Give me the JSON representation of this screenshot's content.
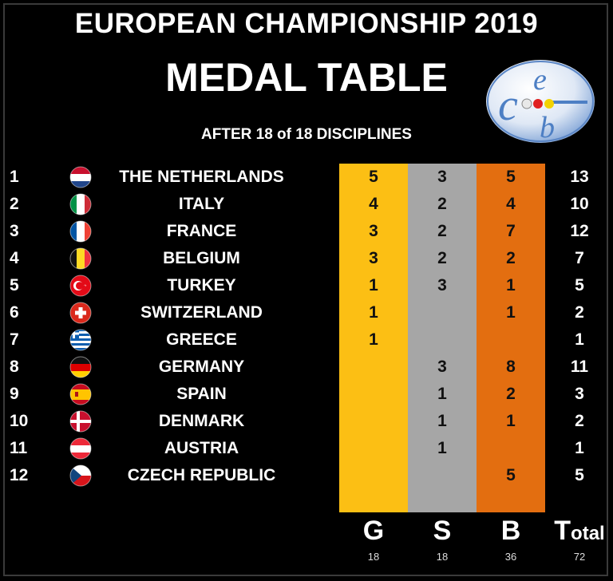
{
  "title": "EUROPEAN CHAMPIONSHIP 2019",
  "subtitle": "MEDAL TABLE",
  "after": "AFTER 18 of 18 DISCIPLINES",
  "logo": {
    "icon": "ceb-logo-icon",
    "letters": [
      "c",
      "e",
      "b"
    ]
  },
  "rows": [
    {
      "rank": "1",
      "flag": "netherlands-flag-icon",
      "country": "THE NETHERLANDS",
      "gold": "5",
      "silver": "3",
      "bronze": "5",
      "total": "13"
    },
    {
      "rank": "2",
      "flag": "italy-flag-icon",
      "country": "ITALY",
      "gold": "4",
      "silver": "2",
      "bronze": "4",
      "total": "10"
    },
    {
      "rank": "3",
      "flag": "france-flag-icon",
      "country": "FRANCE",
      "gold": "3",
      "silver": "2",
      "bronze": "7",
      "total": "12"
    },
    {
      "rank": "4",
      "flag": "belgium-flag-icon",
      "country": "BELGIUM",
      "gold": "3",
      "silver": "2",
      "bronze": "2",
      "total": "7"
    },
    {
      "rank": "5",
      "flag": "turkey-flag-icon",
      "country": "TURKEY",
      "gold": "1",
      "silver": "3",
      "bronze": "1",
      "total": "5"
    },
    {
      "rank": "6",
      "flag": "switzerland-flag-icon",
      "country": "SWITZERLAND",
      "gold": "1",
      "silver": "",
      "bronze": "1",
      "total": "2"
    },
    {
      "rank": "7",
      "flag": "greece-flag-icon",
      "country": "GREECE",
      "gold": "1",
      "silver": "",
      "bronze": "",
      "total": "1"
    },
    {
      "rank": "8",
      "flag": "germany-flag-icon",
      "country": "GERMANY",
      "gold": "",
      "silver": "3",
      "bronze": "8",
      "total": "11"
    },
    {
      "rank": "9",
      "flag": "spain-flag-icon",
      "country": "SPAIN",
      "gold": "",
      "silver": "1",
      "bronze": "2",
      "total": "3"
    },
    {
      "rank": "10",
      "flag": "denmark-flag-icon",
      "country": "DENMARK",
      "gold": "",
      "silver": "1",
      "bronze": "1",
      "total": "2"
    },
    {
      "rank": "11",
      "flag": "austria-flag-icon",
      "country": "AUSTRIA",
      "gold": "",
      "silver": "1",
      "bronze": "",
      "total": "1"
    },
    {
      "rank": "12",
      "flag": "czech-republic-flag-icon",
      "country": "CZECH REPUBLIC",
      "gold": "",
      "silver": "",
      "bronze": "5",
      "total": "5"
    }
  ],
  "headers": {
    "gold": "G",
    "silver": "S",
    "bronze": "B",
    "total_initial": "T",
    "total_rest": "otal"
  },
  "sums": {
    "gold": "18",
    "silver": "18",
    "bronze": "36",
    "total": "72"
  },
  "colors": {
    "gold": "#fcbf14",
    "silver": "#a6a6a6",
    "bronze": "#e36e10",
    "background": "#000000"
  }
}
